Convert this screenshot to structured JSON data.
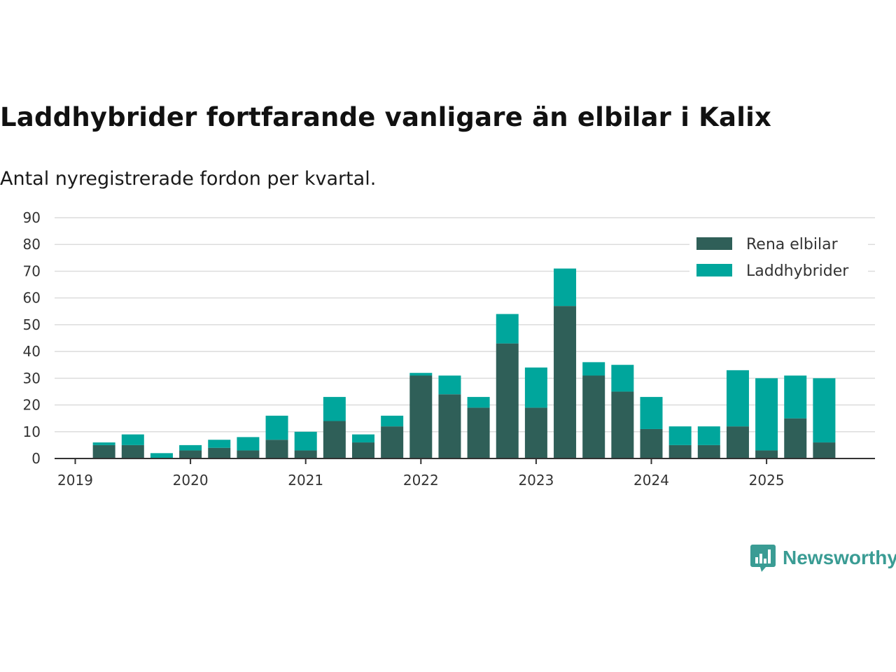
{
  "title": "Laddhybrider fortfarande vanligare än elbilar i Kalix",
  "subtitle": "Antal nyregistrerade fordon per kvartal.",
  "brand": {
    "name": "Newsworthy",
    "icon": "newsworthy-logo-icon",
    "color": "#3a9c94"
  },
  "chart_data": {
    "type": "bar",
    "stacked": true,
    "categories": [
      "2019 Q1",
      "2019 Q2",
      "2019 Q3",
      "2019 Q4",
      "2020 Q1",
      "2020 Q2",
      "2020 Q3",
      "2020 Q4",
      "2021 Q1",
      "2021 Q2",
      "2021 Q3",
      "2021 Q4",
      "2022 Q1",
      "2022 Q2",
      "2022 Q3",
      "2022 Q4",
      "2023 Q1",
      "2023 Q2",
      "2023 Q3",
      "2023 Q4",
      "2024 Q1",
      "2024 Q2",
      "2024 Q3",
      "2024 Q4",
      "2025 Q1",
      "2025 Q2",
      "2025 Q3"
    ],
    "series": [
      {
        "name": "Rena elbilar",
        "color": "#2f5f58",
        "values": [
          0,
          5,
          5,
          0,
          3,
          4,
          3,
          7,
          3,
          14,
          6,
          12,
          31,
          24,
          19,
          43,
          19,
          57,
          31,
          25,
          11,
          5,
          5,
          12,
          3,
          15,
          6
        ]
      },
      {
        "name": "Laddhybrider",
        "color": "#00a69c",
        "values": [
          0,
          1,
          4,
          2,
          2,
          3,
          5,
          9,
          7,
          9,
          3,
          4,
          1,
          7,
          4,
          11,
          15,
          14,
          5,
          10,
          12,
          7,
          7,
          21,
          27,
          16,
          24
        ]
      }
    ],
    "x_tick_labels": [
      "2019",
      "2020",
      "2021",
      "2022",
      "2023",
      "2024",
      "2025"
    ],
    "y_ticks": [
      0,
      10,
      20,
      30,
      40,
      50,
      60,
      70,
      80,
      90
    ],
    "ylim": [
      0,
      90
    ],
    "xlabel": "",
    "ylabel": "",
    "grid": "horizontal",
    "legend": "top-right"
  }
}
